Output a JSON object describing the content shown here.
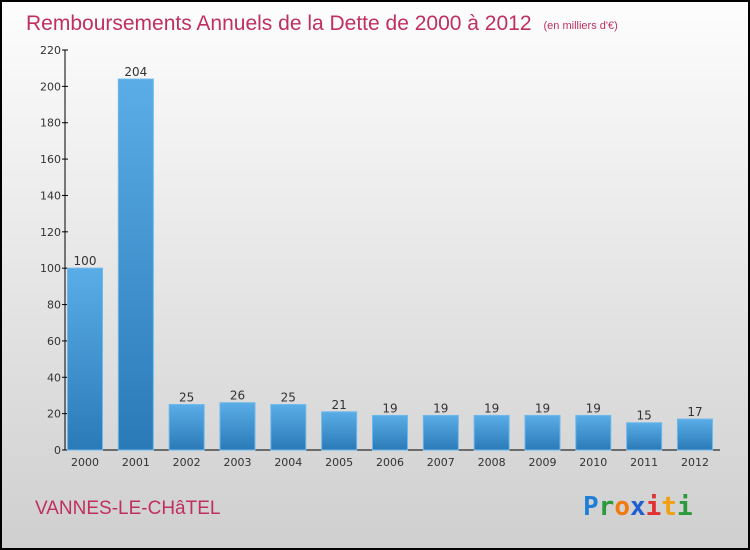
{
  "chart_data": {
    "type": "bar",
    "title": "Remboursements Annuels de la Dette de 2000 à 2012",
    "subtitle": "(en milliers d'€)",
    "categories": [
      "2000",
      "2001",
      "2002",
      "2003",
      "2004",
      "2005",
      "2006",
      "2007",
      "2008",
      "2009",
      "2010",
      "2011",
      "2012"
    ],
    "values": [
      100,
      204,
      25,
      26,
      25,
      21,
      19,
      19,
      19,
      19,
      19,
      15,
      17
    ],
    "ylim": [
      0,
      220
    ],
    "yticks": [
      0,
      20,
      40,
      60,
      80,
      100,
      120,
      140,
      160,
      180,
      200,
      220
    ],
    "xlabel": "",
    "ylabel": "",
    "bar_color": "#4a9fe0"
  },
  "footer": {
    "city": "VANNES-LE-CHâTEL",
    "logo": "Proxiti"
  }
}
